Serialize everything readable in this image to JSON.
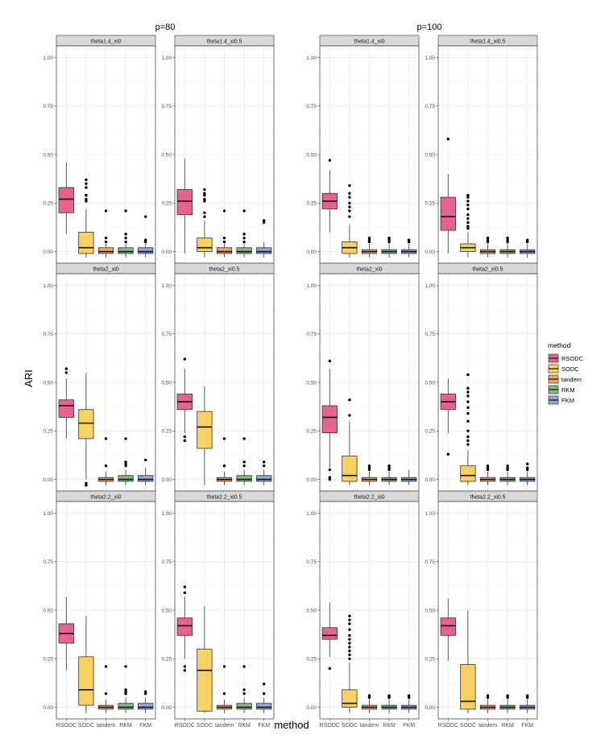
{
  "chart_data": {
    "type": "boxplot",
    "group_titles": [
      "p=80",
      "p=100"
    ],
    "xlabel": "method",
    "ylabel": "ARI",
    "ylim": [
      -0.06,
      1.06
    ],
    "yticks": [
      "0.00",
      "0.25",
      "0.50",
      "0.75",
      "1.00"
    ],
    "ytick_values": [
      0,
      0.25,
      0.5,
      0.75,
      1.0
    ],
    "methods": [
      "RSODC",
      "SODC",
      "tandem",
      "RKM",
      "FKM"
    ],
    "colors": [
      "#E8628E",
      "#F9D162",
      "#F3A35C",
      "#7DBC7D",
      "#8FA8D8"
    ],
    "legend": {
      "title": "method",
      "entries": [
        "RSODC",
        "SODC",
        "tandem",
        "RKM",
        "FKM"
      ]
    },
    "panels": [
      {
        "title": "theta1.4_xi0",
        "boxes": [
          {
            "min": 0.09,
            "q1": 0.2,
            "median": 0.27,
            "q3": 0.33,
            "max": 0.46,
            "outliers": []
          },
          {
            "min": -0.03,
            "q1": -0.01,
            "median": 0.02,
            "q3": 0.1,
            "max": 0.22,
            "outliers": [
              0.26,
              0.27,
              0.29,
              0.33,
              0.35,
              0.37
            ]
          },
          {
            "min": -0.03,
            "q1": -0.01,
            "median": 0.0,
            "q3": 0.02,
            "max": 0.04,
            "outliers": [
              0.05,
              0.07,
              0.21
            ]
          },
          {
            "min": -0.03,
            "q1": -0.01,
            "median": 0.0,
            "q3": 0.02,
            "max": 0.04,
            "outliers": [
              0.05,
              0.07,
              0.09,
              0.21
            ]
          },
          {
            "min": -0.03,
            "q1": -0.01,
            "median": 0.0,
            "q3": 0.02,
            "max": 0.04,
            "outliers": [
              0.05,
              0.06,
              0.18
            ]
          }
        ]
      },
      {
        "title": "theta1.4_xi0.5",
        "boxes": [
          {
            "min": -0.01,
            "q1": 0.19,
            "median": 0.26,
            "q3": 0.32,
            "max": 0.48,
            "outliers": []
          },
          {
            "min": -0.03,
            "q1": 0.0,
            "median": 0.02,
            "q3": 0.07,
            "max": 0.16,
            "outliers": [
              0.18,
              0.2,
              0.26,
              0.27,
              0.29,
              0.3,
              0.32
            ]
          },
          {
            "min": -0.03,
            "q1": -0.01,
            "median": 0.0,
            "q3": 0.02,
            "max": 0.04,
            "outliers": [
              0.05,
              0.07,
              0.21
            ]
          },
          {
            "min": -0.03,
            "q1": -0.01,
            "median": 0.0,
            "q3": 0.02,
            "max": 0.04,
            "outliers": [
              0.05,
              0.07,
              0.09,
              0.21
            ]
          },
          {
            "min": -0.03,
            "q1": -0.01,
            "median": 0.0,
            "q3": 0.02,
            "max": 0.05,
            "outliers": [
              0.15,
              0.16
            ]
          }
        ]
      },
      {
        "title": "theta1.4_xi0",
        "boxes": [
          {
            "min": 0.1,
            "q1": 0.22,
            "median": 0.26,
            "q3": 0.3,
            "max": 0.42,
            "outliers": [
              0.47
            ]
          },
          {
            "min": -0.03,
            "q1": -0.01,
            "median": 0.02,
            "q3": 0.05,
            "max": 0.14,
            "outliers": [
              0.18,
              0.21,
              0.23,
              0.25,
              0.28,
              0.3,
              0.34
            ]
          },
          {
            "min": -0.03,
            "q1": -0.01,
            "median": 0.0,
            "q3": 0.01,
            "max": 0.04,
            "outliers": [
              0.05,
              0.06,
              0.07
            ]
          },
          {
            "min": -0.03,
            "q1": -0.01,
            "median": 0.0,
            "q3": 0.01,
            "max": 0.04,
            "outliers": [
              0.05,
              0.06,
              0.07
            ]
          },
          {
            "min": -0.03,
            "q1": -0.01,
            "median": 0.0,
            "q3": 0.01,
            "max": 0.04,
            "outliers": [
              0.05,
              0.06
            ]
          }
        ]
      },
      {
        "title": "theta1.4_xi0.5",
        "boxes": [
          {
            "min": -0.01,
            "q1": 0.11,
            "median": 0.18,
            "q3": 0.28,
            "max": 0.4,
            "outliers": [
              0.58
            ]
          },
          {
            "min": -0.03,
            "q1": 0.0,
            "median": 0.02,
            "q3": 0.04,
            "max": 0.1,
            "outliers": [
              0.12,
              0.13,
              0.15,
              0.17,
              0.19,
              0.22,
              0.24,
              0.26,
              0.28,
              0.29
            ]
          },
          {
            "min": -0.03,
            "q1": -0.01,
            "median": 0.0,
            "q3": 0.01,
            "max": 0.04,
            "outliers": [
              0.05,
              0.06,
              0.07
            ]
          },
          {
            "min": -0.03,
            "q1": -0.01,
            "median": 0.0,
            "q3": 0.01,
            "max": 0.04,
            "outliers": [
              0.05,
              0.06,
              0.07
            ]
          },
          {
            "min": -0.03,
            "q1": -0.01,
            "median": 0.0,
            "q3": 0.01,
            "max": 0.04,
            "outliers": [
              0.05,
              0.06
            ]
          }
        ]
      },
      {
        "title": "theta2_xi0",
        "boxes": [
          {
            "min": 0.21,
            "q1": 0.32,
            "median": 0.38,
            "q3": 0.41,
            "max": 0.52,
            "outliers": [
              0.55,
              0.57
            ]
          },
          {
            "min": 0.0,
            "q1": 0.21,
            "median": 0.29,
            "q3": 0.36,
            "max": 0.55,
            "outliers": [
              -0.02,
              -0.03
            ]
          },
          {
            "min": -0.03,
            "q1": -0.01,
            "median": 0.0,
            "q3": 0.01,
            "max": 0.04,
            "outliers": [
              0.07,
              0.21
            ]
          },
          {
            "min": -0.03,
            "q1": -0.01,
            "median": 0.0,
            "q3": 0.02,
            "max": 0.05,
            "outliers": [
              0.07,
              0.08,
              0.09,
              0.21
            ]
          },
          {
            "min": -0.03,
            "q1": -0.01,
            "median": 0.0,
            "q3": 0.02,
            "max": 0.06,
            "outliers": [
              0.1
            ]
          }
        ]
      },
      {
        "title": "theta2_xi0.5",
        "boxes": [
          {
            "min": 0.24,
            "q1": 0.36,
            "median": 0.4,
            "q3": 0.44,
            "max": 0.57,
            "outliers": [
              0.2,
              0.22,
              0.62
            ]
          },
          {
            "min": -0.03,
            "q1": 0.16,
            "median": 0.27,
            "q3": 0.35,
            "max": 0.48,
            "outliers": []
          },
          {
            "min": -0.03,
            "q1": -0.01,
            "median": 0.0,
            "q3": 0.01,
            "max": 0.04,
            "outliers": [
              0.07,
              0.21
            ]
          },
          {
            "min": -0.03,
            "q1": -0.01,
            "median": 0.0,
            "q3": 0.02,
            "max": 0.05,
            "outliers": [
              0.07,
              0.09,
              0.21
            ]
          },
          {
            "min": -0.03,
            "q1": -0.01,
            "median": 0.0,
            "q3": 0.02,
            "max": 0.05,
            "outliers": [
              0.07,
              0.09
            ]
          }
        ]
      },
      {
        "title": "theta2_xi0",
        "boxes": [
          {
            "min": 0.06,
            "q1": 0.24,
            "median": 0.32,
            "q3": 0.38,
            "max": 0.57,
            "outliers": [
              0.0,
              0.01,
              0.05,
              0.61
            ]
          },
          {
            "min": -0.03,
            "q1": -0.01,
            "median": 0.02,
            "q3": 0.12,
            "max": 0.3,
            "outliers": [
              0.33,
              0.41
            ]
          },
          {
            "min": -0.03,
            "q1": -0.01,
            "median": 0.0,
            "q3": 0.01,
            "max": 0.04,
            "outliers": [
              0.05,
              0.06,
              0.07
            ]
          },
          {
            "min": -0.03,
            "q1": -0.01,
            "median": 0.0,
            "q3": 0.01,
            "max": 0.04,
            "outliers": [
              0.05,
              0.06,
              0.07
            ]
          },
          {
            "min": -0.03,
            "q1": -0.01,
            "median": 0.0,
            "q3": 0.01,
            "max": 0.05,
            "outliers": []
          }
        ]
      },
      {
        "title": "theta2_xi0.5",
        "boxes": [
          {
            "min": 0.24,
            "q1": 0.36,
            "median": 0.4,
            "q3": 0.44,
            "max": 0.52,
            "outliers": [
              0.13
            ]
          },
          {
            "min": -0.03,
            "q1": -0.01,
            "median": 0.02,
            "q3": 0.07,
            "max": 0.15,
            "outliers": [
              0.18,
              0.2,
              0.22,
              0.25,
              0.3,
              0.34,
              0.37,
              0.4,
              0.43,
              0.45,
              0.47,
              0.54
            ]
          },
          {
            "min": -0.03,
            "q1": -0.01,
            "median": 0.0,
            "q3": 0.01,
            "max": 0.04,
            "outliers": [
              0.05,
              0.06,
              0.07
            ]
          },
          {
            "min": -0.03,
            "q1": -0.01,
            "median": 0.0,
            "q3": 0.01,
            "max": 0.04,
            "outliers": [
              0.05,
              0.06,
              0.07
            ]
          },
          {
            "min": -0.03,
            "q1": -0.01,
            "median": 0.0,
            "q3": 0.01,
            "max": 0.04,
            "outliers": [
              0.05,
              0.06,
              0.08
            ]
          }
        ]
      },
      {
        "title": "theta2.2_xi0",
        "boxes": [
          {
            "min": 0.19,
            "q1": 0.33,
            "median": 0.38,
            "q3": 0.43,
            "max": 0.57,
            "outliers": []
          },
          {
            "min": -0.03,
            "q1": 0.01,
            "median": 0.09,
            "q3": 0.26,
            "max": 0.47,
            "outliers": []
          },
          {
            "min": -0.03,
            "q1": -0.01,
            "median": 0.0,
            "q3": 0.01,
            "max": 0.04,
            "outliers": [
              0.07,
              0.21
            ]
          },
          {
            "min": -0.03,
            "q1": -0.01,
            "median": 0.0,
            "q3": 0.02,
            "max": 0.05,
            "outliers": [
              0.07,
              0.08,
              0.09,
              0.21
            ]
          },
          {
            "min": -0.03,
            "q1": -0.01,
            "median": 0.0,
            "q3": 0.02,
            "max": 0.05,
            "outliers": [
              0.07,
              0.08
            ]
          }
        ]
      },
      {
        "title": "theta2.2_xi0.5",
        "boxes": [
          {
            "min": 0.25,
            "q1": 0.37,
            "median": 0.42,
            "q3": 0.46,
            "max": 0.57,
            "outliers": [
              0.19,
              0.21,
              0.59,
              0.62
            ]
          },
          {
            "min": -0.03,
            "q1": -0.02,
            "median": 0.19,
            "q3": 0.3,
            "max": 0.52,
            "outliers": []
          },
          {
            "min": -0.03,
            "q1": -0.01,
            "median": 0.0,
            "q3": 0.01,
            "max": 0.04,
            "outliers": [
              0.07,
              0.21
            ]
          },
          {
            "min": -0.03,
            "q1": -0.01,
            "median": 0.0,
            "q3": 0.02,
            "max": 0.05,
            "outliers": [
              0.07,
              0.09,
              0.21
            ]
          },
          {
            "min": -0.03,
            "q1": -0.01,
            "median": 0.0,
            "q3": 0.02,
            "max": 0.05,
            "outliers": [
              0.07,
              0.12
            ]
          }
        ]
      },
      {
        "title": "theta2.2_xi0",
        "boxes": [
          {
            "min": 0.26,
            "q1": 0.35,
            "median": 0.37,
            "q3": 0.41,
            "max": 0.54,
            "outliers": [
              0.2
            ]
          },
          {
            "min": -0.03,
            "q1": 0.0,
            "median": 0.02,
            "q3": 0.09,
            "max": 0.23,
            "outliers": [
              0.25,
              0.27,
              0.29,
              0.31,
              0.33,
              0.35,
              0.37,
              0.4,
              0.43,
              0.45,
              0.47
            ]
          },
          {
            "min": -0.03,
            "q1": -0.01,
            "median": 0.0,
            "q3": 0.01,
            "max": 0.04,
            "outliers": [
              0.05,
              0.06
            ]
          },
          {
            "min": -0.03,
            "q1": -0.01,
            "median": 0.0,
            "q3": 0.01,
            "max": 0.04,
            "outliers": [
              0.05,
              0.06
            ]
          },
          {
            "min": -0.03,
            "q1": -0.01,
            "median": 0.0,
            "q3": 0.01,
            "max": 0.04,
            "outliers": [
              0.05,
              0.06
            ]
          }
        ]
      },
      {
        "title": "theta2.2_xi0.5",
        "boxes": [
          {
            "min": 0.24,
            "q1": 0.37,
            "median": 0.42,
            "q3": 0.46,
            "max": 0.56,
            "outliers": []
          },
          {
            "min": -0.03,
            "q1": -0.01,
            "median": 0.03,
            "q3": 0.22,
            "max": 0.5,
            "outliers": []
          },
          {
            "min": -0.03,
            "q1": -0.01,
            "median": 0.0,
            "q3": 0.01,
            "max": 0.04,
            "outliers": [
              0.05,
              0.06
            ]
          },
          {
            "min": -0.03,
            "q1": -0.01,
            "median": 0.0,
            "q3": 0.01,
            "max": 0.04,
            "outliers": [
              0.05,
              0.06
            ]
          },
          {
            "min": -0.03,
            "q1": -0.01,
            "median": 0.0,
            "q3": 0.01,
            "max": 0.04,
            "outliers": [
              0.05,
              0.06
            ]
          }
        ]
      }
    ]
  }
}
